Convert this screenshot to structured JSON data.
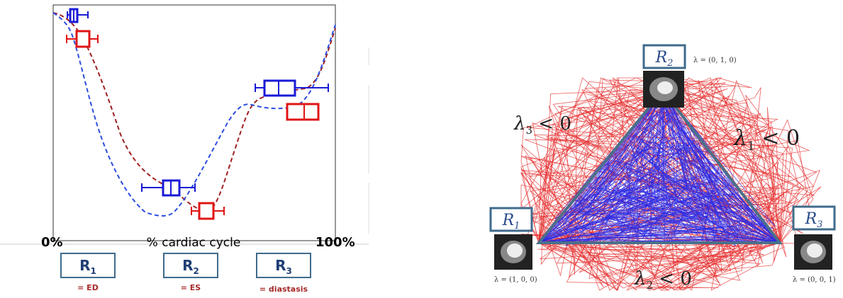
{
  "left_panel": {
    "x_axis": {
      "label": "% cardiac cycle",
      "start_label": "0%",
      "end_label": "100%"
    },
    "references": [
      {
        "main": "R",
        "sub": "1",
        "caption": "= ED"
      },
      {
        "main": "R",
        "sub": "2",
        "caption": "= ES"
      },
      {
        "main": "R",
        "sub": "3",
        "caption": "= diastasis"
      }
    ],
    "colors": {
      "blue_series": "#1a1ad6",
      "red_series": "#e01414",
      "dark_red_curve": "#a02020",
      "box_border": "#3f6b8c",
      "caption": "#a52a2a",
      "ref_text": "#1f3f75"
    }
  },
  "right_panel": {
    "vertices": [
      {
        "main": "R",
        "sub": "1",
        "lambda": "λ = (1, 0, 0)"
      },
      {
        "main": "R",
        "sub": "2",
        "lambda": "λ = (0, 1, 0)"
      },
      {
        "main": "R",
        "sub": "3",
        "lambda": "λ = (0, 0, 1)"
      }
    ],
    "edge_labels": [
      {
        "sym": "λ",
        "sub": "3",
        "rest": " < 0"
      },
      {
        "sym": "λ",
        "sub": "1",
        "rest": " < 0"
      },
      {
        "sym": "λ",
        "sub": "2",
        "rest": " < 0"
      }
    ],
    "colors": {
      "triangle": "#4a708b",
      "blue_paths": "#2a2ae6",
      "red_paths": "#e62a2a",
      "vertex_box": "#3f6b8c"
    }
  }
}
